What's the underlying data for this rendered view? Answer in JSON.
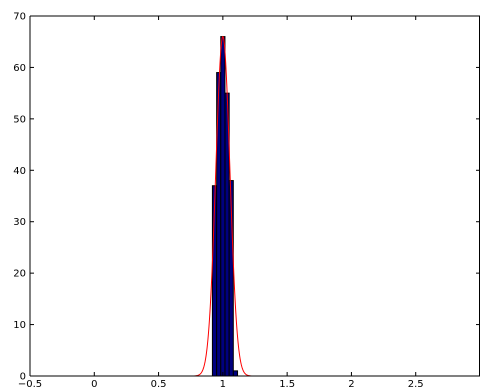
{
  "chart_data": {
    "type": "bar",
    "title": "",
    "xlabel": "",
    "ylabel": "",
    "xlim": [
      -0.5,
      3.0
    ],
    "ylim": [
      0,
      70
    ],
    "xticks": [
      -0.5,
      0,
      0.5,
      1,
      1.5,
      2,
      2.5
    ],
    "xtick_labels": [
      "−0.5",
      "0",
      "0.5",
      "1",
      "1.5",
      "2",
      "2.5"
    ],
    "yticks": [
      0,
      10,
      20,
      30,
      40,
      50,
      60,
      70
    ],
    "ytick_labels": [
      "0",
      "10",
      "20",
      "30",
      "40",
      "50",
      "60",
      "70"
    ],
    "grid": false,
    "bin_width": 0.0325,
    "bins": [
      {
        "center": 0.935,
        "count": 37
      },
      {
        "center": 0.968,
        "count": 59
      },
      {
        "center": 1.0,
        "count": 66
      },
      {
        "center": 1.033,
        "count": 55
      },
      {
        "center": 1.065,
        "count": 38
      },
      {
        "center": 1.098,
        "count": 1
      }
    ],
    "fit_curve": {
      "type": "normal",
      "mean": 1.0,
      "sd": 0.055,
      "peak": 66
    },
    "colors": {
      "bar_fill": "#00007f",
      "bar_edge": "#000000",
      "fit_line": "#ff0000",
      "axes": "#000000"
    }
  }
}
